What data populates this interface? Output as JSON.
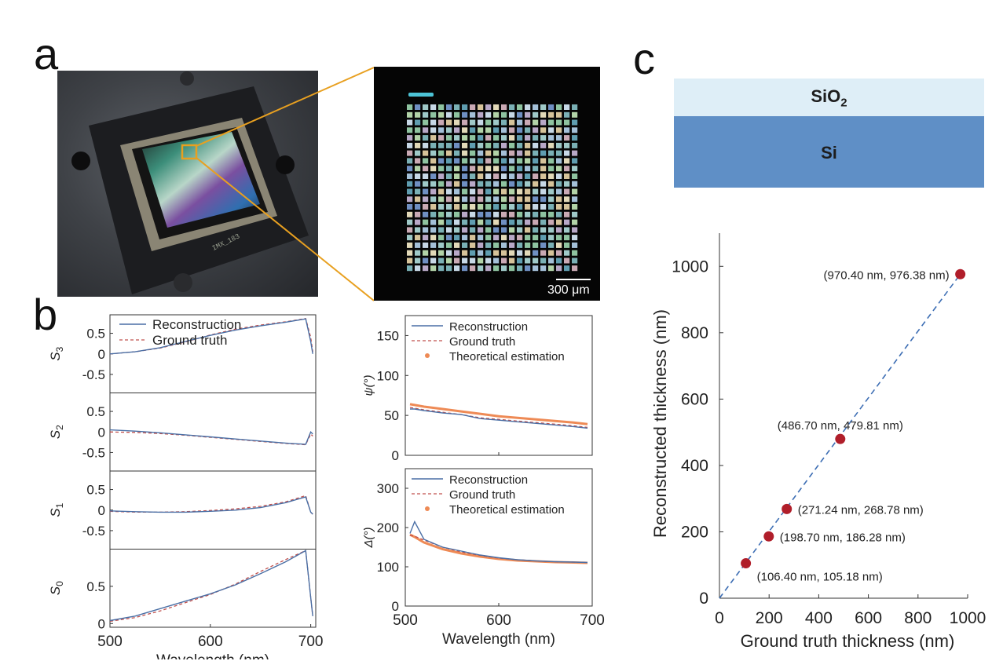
{
  "panels": {
    "a": "a",
    "b": "b",
    "c": "c"
  },
  "photo": {
    "chip_label": "IMX_183"
  },
  "micrograph": {
    "scale_bar_label": "300 μm"
  },
  "layers": {
    "top": "SiO",
    "top_sub": "2",
    "bottom": "Si",
    "colors": {
      "sio2": "#deeef7",
      "si": "#5f8fc6"
    }
  },
  "colors": {
    "reconstruction": "#4a6fa5",
    "ground_truth": "#c0504d",
    "theoretical": "#ee8a55",
    "marker": "#b01e2a",
    "fit_line": "#3d6eb4",
    "orange_frame": "#e8a020"
  },
  "chart_data": [
    {
      "type": "line",
      "id": "stokes",
      "xlabel": "Wavelength (nm)",
      "xlim": [
        500,
        705
      ],
      "xticks": [
        500,
        600,
        700
      ],
      "legend": [
        "Reconstruction",
        "Ground truth"
      ],
      "subplots": [
        {
          "ylabel": "S3",
          "ylim": [
            -0.95,
            0.95
          ],
          "yticks": [
            0.5,
            0,
            -0.5
          ],
          "yticklabels": [
            "0.5",
            "0",
            "-0.5"
          ],
          "x": [
            500,
            525,
            550,
            575,
            600,
            625,
            650,
            675,
            695,
            700,
            702
          ],
          "series": [
            {
              "name": "Reconstruction",
              "values": [
                0.0,
                0.05,
                0.15,
                0.3,
                0.45,
                0.58,
                0.68,
                0.77,
                0.85,
                0.3,
                0.0
              ]
            },
            {
              "name": "Ground truth",
              "values": [
                0.0,
                0.05,
                0.14,
                0.29,
                0.46,
                0.6,
                0.7,
                0.78,
                0.86,
                0.4,
                0.05
              ]
            }
          ]
        },
        {
          "ylabel": "S2",
          "ylim": [
            -0.95,
            0.95
          ],
          "yticks": [
            0.5,
            0,
            -0.5
          ],
          "yticklabels": [
            "0.5",
            "0",
            "-0.5"
          ],
          "x": [
            500,
            525,
            550,
            575,
            600,
            625,
            650,
            675,
            695,
            700,
            702
          ],
          "series": [
            {
              "name": "Reconstruction",
              "values": [
                0.05,
                0.02,
                -0.02,
                -0.07,
                -0.12,
                -0.17,
                -0.22,
                -0.27,
                -0.3,
                0.0,
                -0.05
              ]
            },
            {
              "name": "Ground truth",
              "values": [
                0.0,
                -0.01,
                -0.04,
                -0.08,
                -0.13,
                -0.18,
                -0.23,
                -0.28,
                -0.31,
                -0.05,
                -0.1
              ]
            }
          ]
        },
        {
          "ylabel": "S1",
          "ylim": [
            -0.95,
            0.95
          ],
          "yticks": [
            0.5,
            0,
            -0.5
          ],
          "yticklabels": [
            "0.5",
            "0",
            "-0.5"
          ],
          "x": [
            500,
            525,
            550,
            575,
            600,
            625,
            650,
            675,
            695,
            700,
            702
          ],
          "series": [
            {
              "name": "Reconstruction",
              "values": [
                -0.02,
                -0.04,
                -0.05,
                -0.05,
                -0.03,
                0.0,
                0.06,
                0.18,
                0.32,
                -0.05,
                -0.1
              ]
            },
            {
              "name": "Ground truth",
              "values": [
                -0.03,
                -0.05,
                -0.05,
                -0.04,
                -0.01,
                0.03,
                0.09,
                0.2,
                0.35,
                -0.05,
                -0.1
              ]
            }
          ]
        },
        {
          "ylabel": "S0",
          "ylim": [
            -0.05,
            1.0
          ],
          "yticks": [
            0.5,
            0
          ],
          "yticklabels": [
            "0.5",
            "0"
          ],
          "x": [
            500,
            525,
            550,
            575,
            600,
            625,
            650,
            675,
            695,
            700,
            702
          ],
          "series": [
            {
              "name": "Reconstruction",
              "values": [
                0.04,
                0.1,
                0.2,
                0.3,
                0.4,
                0.52,
                0.67,
                0.83,
                0.98,
                0.35,
                0.1
              ]
            },
            {
              "name": "Ground truth",
              "values": [
                0.03,
                0.08,
                0.17,
                0.28,
                0.39,
                0.53,
                0.7,
                0.86,
                0.98,
                0.35,
                0.1
              ]
            }
          ]
        }
      ]
    },
    {
      "type": "line",
      "id": "psi",
      "ylabel": "ψ(°)",
      "xlim": [
        500,
        700
      ],
      "xticks": [
        500,
        600,
        700
      ],
      "ylim": [
        0,
        175
      ],
      "yticks": [
        0,
        50,
        100,
        150
      ],
      "legend": [
        "Reconstruction",
        "Ground truth",
        "Theoretical estimation"
      ],
      "x": [
        505,
        510,
        520,
        540,
        560,
        580,
        600,
        620,
        640,
        660,
        680,
        695
      ],
      "series": [
        {
          "name": "Reconstruction",
          "values": [
            58,
            58,
            56,
            53,
            51,
            46,
            44,
            42,
            40,
            38,
            36,
            34
          ]
        },
        {
          "name": "Ground truth",
          "values": [
            60,
            59,
            57,
            54,
            51,
            47,
            45,
            43,
            41,
            39,
            37,
            35
          ]
        },
        {
          "name": "Theoretical estimation",
          "values": [
            64,
            63,
            61,
            58,
            55,
            52,
            49,
            47,
            45,
            43,
            41,
            39
          ]
        }
      ]
    },
    {
      "type": "line",
      "id": "delta",
      "ylabel": "Δ(°)",
      "xlabel": "Wavelength (nm)",
      "xlim": [
        500,
        700
      ],
      "xticks": [
        500,
        600,
        700
      ],
      "ylim": [
        0,
        350
      ],
      "yticks": [
        0,
        100,
        200,
        300
      ],
      "legend": [
        "Reconstruction",
        "Ground truth",
        "Theoretical estimation"
      ],
      "x": [
        505,
        510,
        520,
        540,
        560,
        580,
        600,
        620,
        640,
        660,
        680,
        695
      ],
      "series": [
        {
          "name": "Reconstruction",
          "values": [
            185,
            215,
            170,
            150,
            140,
            130,
            123,
            118,
            115,
            113,
            112,
            111
          ]
        },
        {
          "name": "Ground truth",
          "values": [
            180,
            178,
            168,
            150,
            138,
            129,
            122,
            118,
            115,
            113,
            112,
            111
          ]
        },
        {
          "name": "Theoretical estimation",
          "values": [
            182,
            176,
            162,
            145,
            134,
            126,
            120,
            116,
            114,
            112,
            111,
            110
          ]
        }
      ]
    },
    {
      "type": "scatter",
      "id": "thickness",
      "xlabel": "Ground truth thickness (nm)",
      "ylabel": "Reconstructed thickness (nm)",
      "xlim": [
        0,
        1000
      ],
      "ylim": [
        0,
        1100
      ],
      "xticks": [
        0,
        200,
        400,
        600,
        800,
        1000
      ],
      "yticks": [
        0,
        200,
        400,
        600,
        800,
        1000
      ],
      "fit_line": [
        [
          0,
          0
        ],
        [
          970.4,
          976.38
        ]
      ],
      "points": [
        {
          "x": 106.4,
          "y": 105.18,
          "label": "(106.40 nm, 105.18 nm)",
          "label_pos": "below-right"
        },
        {
          "x": 198.7,
          "y": 186.28,
          "label": "(198.70 nm, 186.28 nm)",
          "label_pos": "right"
        },
        {
          "x": 271.24,
          "y": 268.78,
          "label": "(271.24 nm, 268.78 nm)",
          "label_pos": "right"
        },
        {
          "x": 486.7,
          "y": 479.81,
          "label": "(486.70 nm, 479.81 nm)",
          "label_pos": "above"
        },
        {
          "x": 970.4,
          "y": 976.38,
          "label": "(970.40 nm, 976.38 nm)",
          "label_pos": "left"
        }
      ]
    }
  ]
}
